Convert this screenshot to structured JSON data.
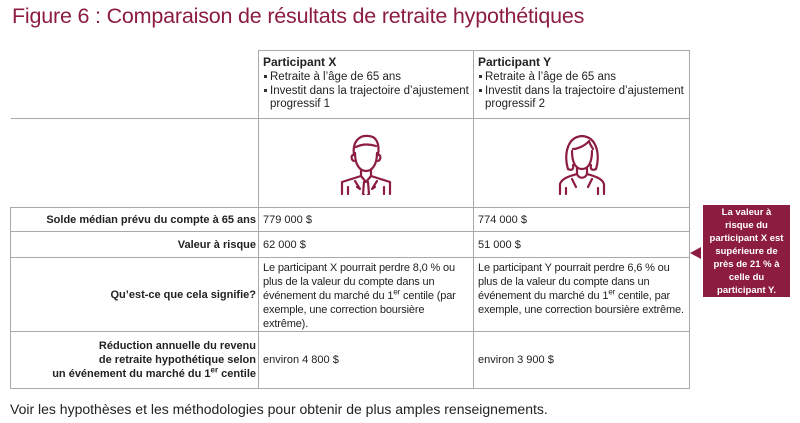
{
  "title": "Figure 6 : Comparaison de résultats de retraite hypothétiques",
  "participants": [
    {
      "name": "Participant X",
      "bullets": [
        "Retraite à l’âge de 65 ans",
        "Investit dans la trajectoire d’ajustement progressif 1"
      ],
      "icon": "male-person-icon"
    },
    {
      "name": "Participant Y",
      "bullets": [
        "Retraite à l’âge de 65 ans",
        "Investit dans la trajectoire d’ajustement progressif 2"
      ],
      "icon": "female-person-icon"
    }
  ],
  "rows": {
    "solde": {
      "label": "Solde médian prévu du compte à 65 ans",
      "x": "779 000 $",
      "y": "774 000 $"
    },
    "valeur": {
      "label": "Valeur à risque",
      "x": "62 000  $",
      "y": "51 000 $"
    },
    "meaning": {
      "label": "Qu’est-ce que cela signifie?",
      "x_pre": "Le participant X pourrait perdre 8,0 % ou plus de la valeur du compte dans un événement du marché du 1",
      "x_post": " centile (par exemple, une correction boursière extrême).",
      "y_pre": "Le participant Y pourrait perdre 6,6 % ou plus de la valeur du compte dans un événement du marché du 1",
      "y_post": " centile, par exemple, une correction boursière extrême.",
      "sup": "er"
    },
    "reduction": {
      "label_line1": "Réduction annuelle du revenu",
      "label_line2": "de retraite hypothétique selon",
      "label_line3_pre": "un événement du marché du 1",
      "label_line3_sup": "er",
      "label_line3_post": " centile",
      "x": "environ 4 800 $",
      "y": "environ 3 900 $"
    }
  },
  "callout": "La valeur à risque du participant X est supérieure de près de 21 % à celle du participant Y.",
  "footnote": "Voir les hypothèses et les méthodologies pour obtenir de plus amples renseignements.",
  "colors": {
    "accent": "#8c1d40",
    "border": "#a9a9a9",
    "text": "#222222"
  }
}
